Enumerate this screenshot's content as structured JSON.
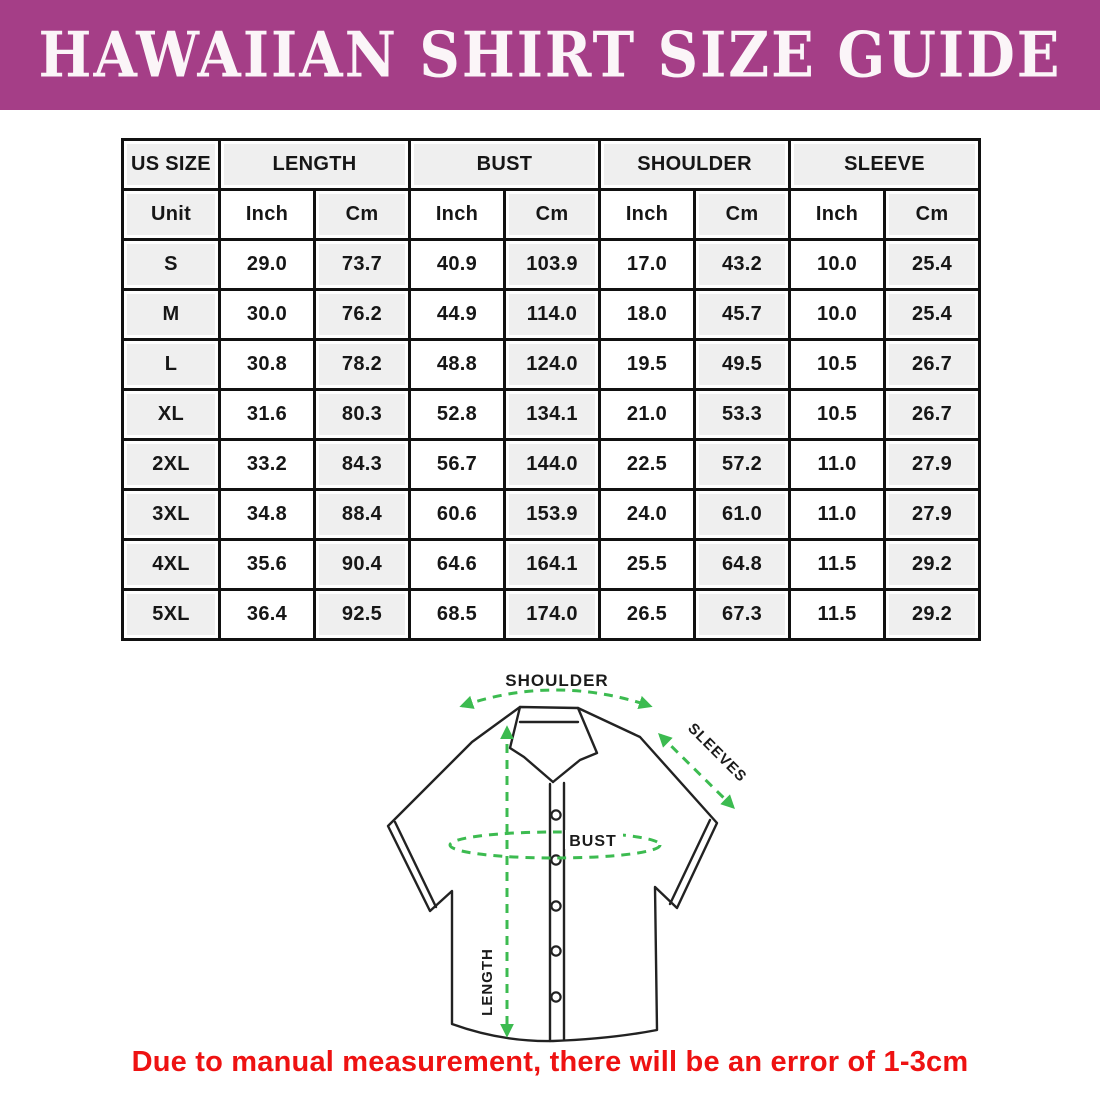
{
  "banner": {
    "title": "HAWAIIAN SHIRT SIZE GUIDE"
  },
  "table": {
    "corner_label": "US SIZE",
    "group_headers": [
      "LENGTH",
      "BUST",
      "SHOULDER",
      "SLEEVE"
    ],
    "unit_row": [
      "Unit",
      "Inch",
      "Cm",
      "Inch",
      "Cm",
      "Inch",
      "Cm",
      "Inch",
      "Cm"
    ],
    "rows": [
      {
        "size": "S",
        "values": [
          "29.0",
          "73.7",
          "40.9",
          "103.9",
          "17.0",
          "43.2",
          "10.0",
          "25.4"
        ]
      },
      {
        "size": "M",
        "values": [
          "30.0",
          "76.2",
          "44.9",
          "114.0",
          "18.0",
          "45.7",
          "10.0",
          "25.4"
        ]
      },
      {
        "size": "L",
        "values": [
          "30.8",
          "78.2",
          "48.8",
          "124.0",
          "19.5",
          "49.5",
          "10.5",
          "26.7"
        ]
      },
      {
        "size": "XL",
        "values": [
          "31.6",
          "80.3",
          "52.8",
          "134.1",
          "21.0",
          "53.3",
          "10.5",
          "26.7"
        ]
      },
      {
        "size": "2XL",
        "values": [
          "33.2",
          "84.3",
          "56.7",
          "144.0",
          "22.5",
          "57.2",
          "11.0",
          "27.9"
        ]
      },
      {
        "size": "3XL",
        "values": [
          "34.8",
          "88.4",
          "60.6",
          "153.9",
          "24.0",
          "61.0",
          "11.0",
          "27.9"
        ]
      },
      {
        "size": "4XL",
        "values": [
          "35.6",
          "90.4",
          "64.6",
          "164.1",
          "25.5",
          "64.8",
          "11.5",
          "29.2"
        ]
      },
      {
        "size": "5XL",
        "values": [
          "36.4",
          "92.5",
          "68.5",
          "174.0",
          "26.5",
          "67.3",
          "11.5",
          "29.2"
        ]
      }
    ]
  },
  "diagram": {
    "labels": {
      "shoulder": "SHOULDER",
      "sleeves": "SLEEVES",
      "bust": "BUST",
      "length": "LENGTH"
    }
  },
  "footer": {
    "note": "Due to manual measurement, there will be an error of 1-3cm"
  },
  "colors": {
    "banner_bg": "#a53e87",
    "banner_text": "#fbf5f8",
    "accent_green": "#3cbb50",
    "note_red": "#ee1212",
    "cell_gray": "#efefef",
    "border_black": "#111111"
  }
}
